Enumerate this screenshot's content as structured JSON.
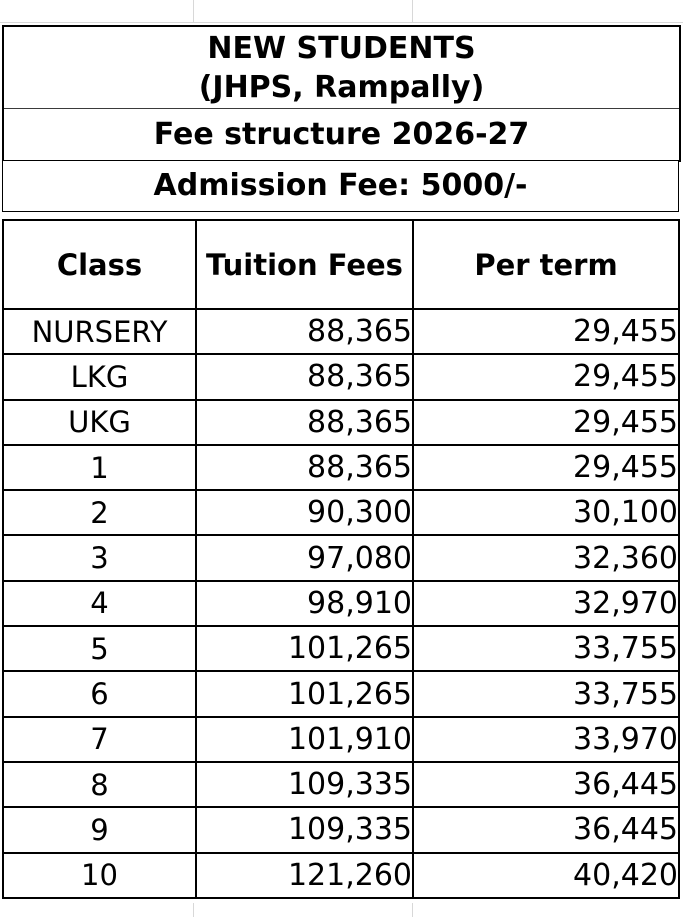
{
  "sheet": {
    "title_line1": "NEW STUDENTS",
    "title_line2": "(JHPS, Rampally)",
    "subtitle": "Fee structure 2026-27",
    "admission_note": "Admission Fee: 5000/-"
  },
  "table": {
    "columns": [
      "Class",
      "Tuition Fees",
      "Per term"
    ],
    "rows": [
      {
        "class": "NURSERY",
        "tuition": "88,365",
        "per_term": "29,455"
      },
      {
        "class": "LKG",
        "tuition": "88,365",
        "per_term": "29,455"
      },
      {
        "class": "UKG",
        "tuition": "88,365",
        "per_term": "29,455"
      },
      {
        "class": "1",
        "tuition": "88,365",
        "per_term": "29,455"
      },
      {
        "class": "2",
        "tuition": "90,300",
        "per_term": "30,100"
      },
      {
        "class": "3",
        "tuition": "97,080",
        "per_term": "32,360"
      },
      {
        "class": "4",
        "tuition": "98,910",
        "per_term": "32,970"
      },
      {
        "class": "5",
        "tuition": "101,265",
        "per_term": "33,755"
      },
      {
        "class": "6",
        "tuition": "101,265",
        "per_term": "33,755"
      },
      {
        "class": "7",
        "tuition": "101,910",
        "per_term": "33,970"
      },
      {
        "class": "8",
        "tuition": "109,335",
        "per_term": "36,445"
      },
      {
        "class": "9",
        "tuition": "109,335",
        "per_term": "36,445"
      },
      {
        "class": "10",
        "tuition": "121,260",
        "per_term": "40,420"
      }
    ]
  },
  "colors": {
    "text": "#000000",
    "border": "#000000",
    "gridline": "#d8d8d8",
    "background": "#ffffff"
  }
}
